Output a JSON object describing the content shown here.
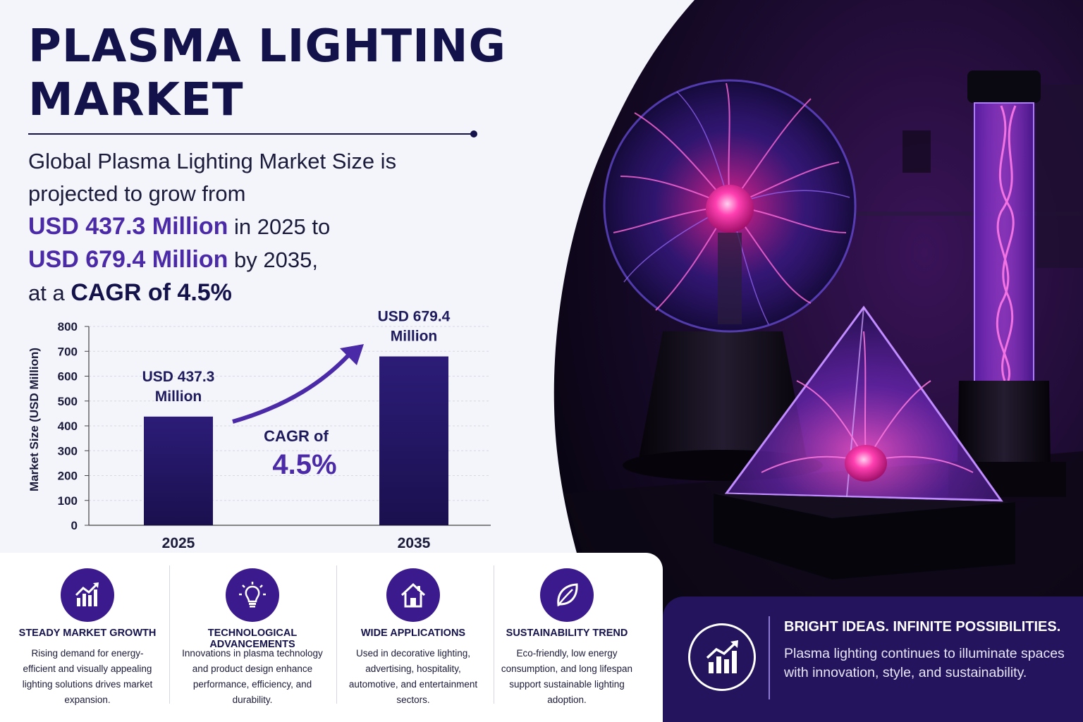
{
  "header": {
    "title": "PLASMA LIGHTING MARKET",
    "lead_line1": "Global Plasma Lighting Market Size is",
    "lead_line2": "projected to grow from",
    "value_2025": "USD 437.3 Million",
    "text_in_2025": " in 2025 to",
    "value_2035": "USD 679.4 Million",
    "text_by_2035": " by 2035,",
    "text_at_a": "at a ",
    "cagr_phrase": "CAGR of 4.5%"
  },
  "chart_data": {
    "type": "bar",
    "categories": [
      "2025",
      "2035"
    ],
    "values": [
      437.3,
      679.4
    ],
    "ylabel": "Market Size (USD Million)",
    "ylim": [
      0,
      800
    ],
    "yticks": [
      0,
      100,
      200,
      300,
      400,
      500,
      600,
      700,
      800
    ],
    "grid": true,
    "data_labels": [
      [
        "USD 437.3",
        "Million"
      ],
      [
        "USD 679.4",
        "Million"
      ]
    ],
    "annotation_small": "CAGR of",
    "annotation_big": "4.5%",
    "bar_color": "#24145e",
    "arrow_color": "#4b2aa8"
  },
  "features": [
    {
      "icon": "growth-chart-icon",
      "title": "STEADY MARKET GROWTH",
      "desc": "Rising demand for energy-efficient and visually appealing lighting solutions drives market expansion."
    },
    {
      "icon": "lightbulb-icon",
      "title": "TECHNOLOGICAL ADVANCEMENTS",
      "desc": "Innovations in plasma technology and product design enhance performance, efficiency, and durability."
    },
    {
      "icon": "house-icon",
      "title": "WIDE APPLICATIONS",
      "desc": "Used in decorative lighting, advertising, hospitality, automotive, and entertainment sectors."
    },
    {
      "icon": "leaf-icon",
      "title": "SUSTAINABILITY TREND",
      "desc": "Eco-friendly, low energy consumption, and long lifespan support sustainable lighting adoption."
    }
  ],
  "banner": {
    "icon": "growth-chart-icon",
    "title": "BRIGHT IDEAS. INFINITE POSSIBILITIES.",
    "text": "Plasma lighting continues to illuminate spaces with innovation, style, and sustainability."
  },
  "colors": {
    "navy": "#14124a",
    "accent_purple": "#4b2aa8",
    "bar": "#24145e",
    "plasma_pink": "#ff3fb0",
    "plasma_violet": "#8a3cff"
  }
}
